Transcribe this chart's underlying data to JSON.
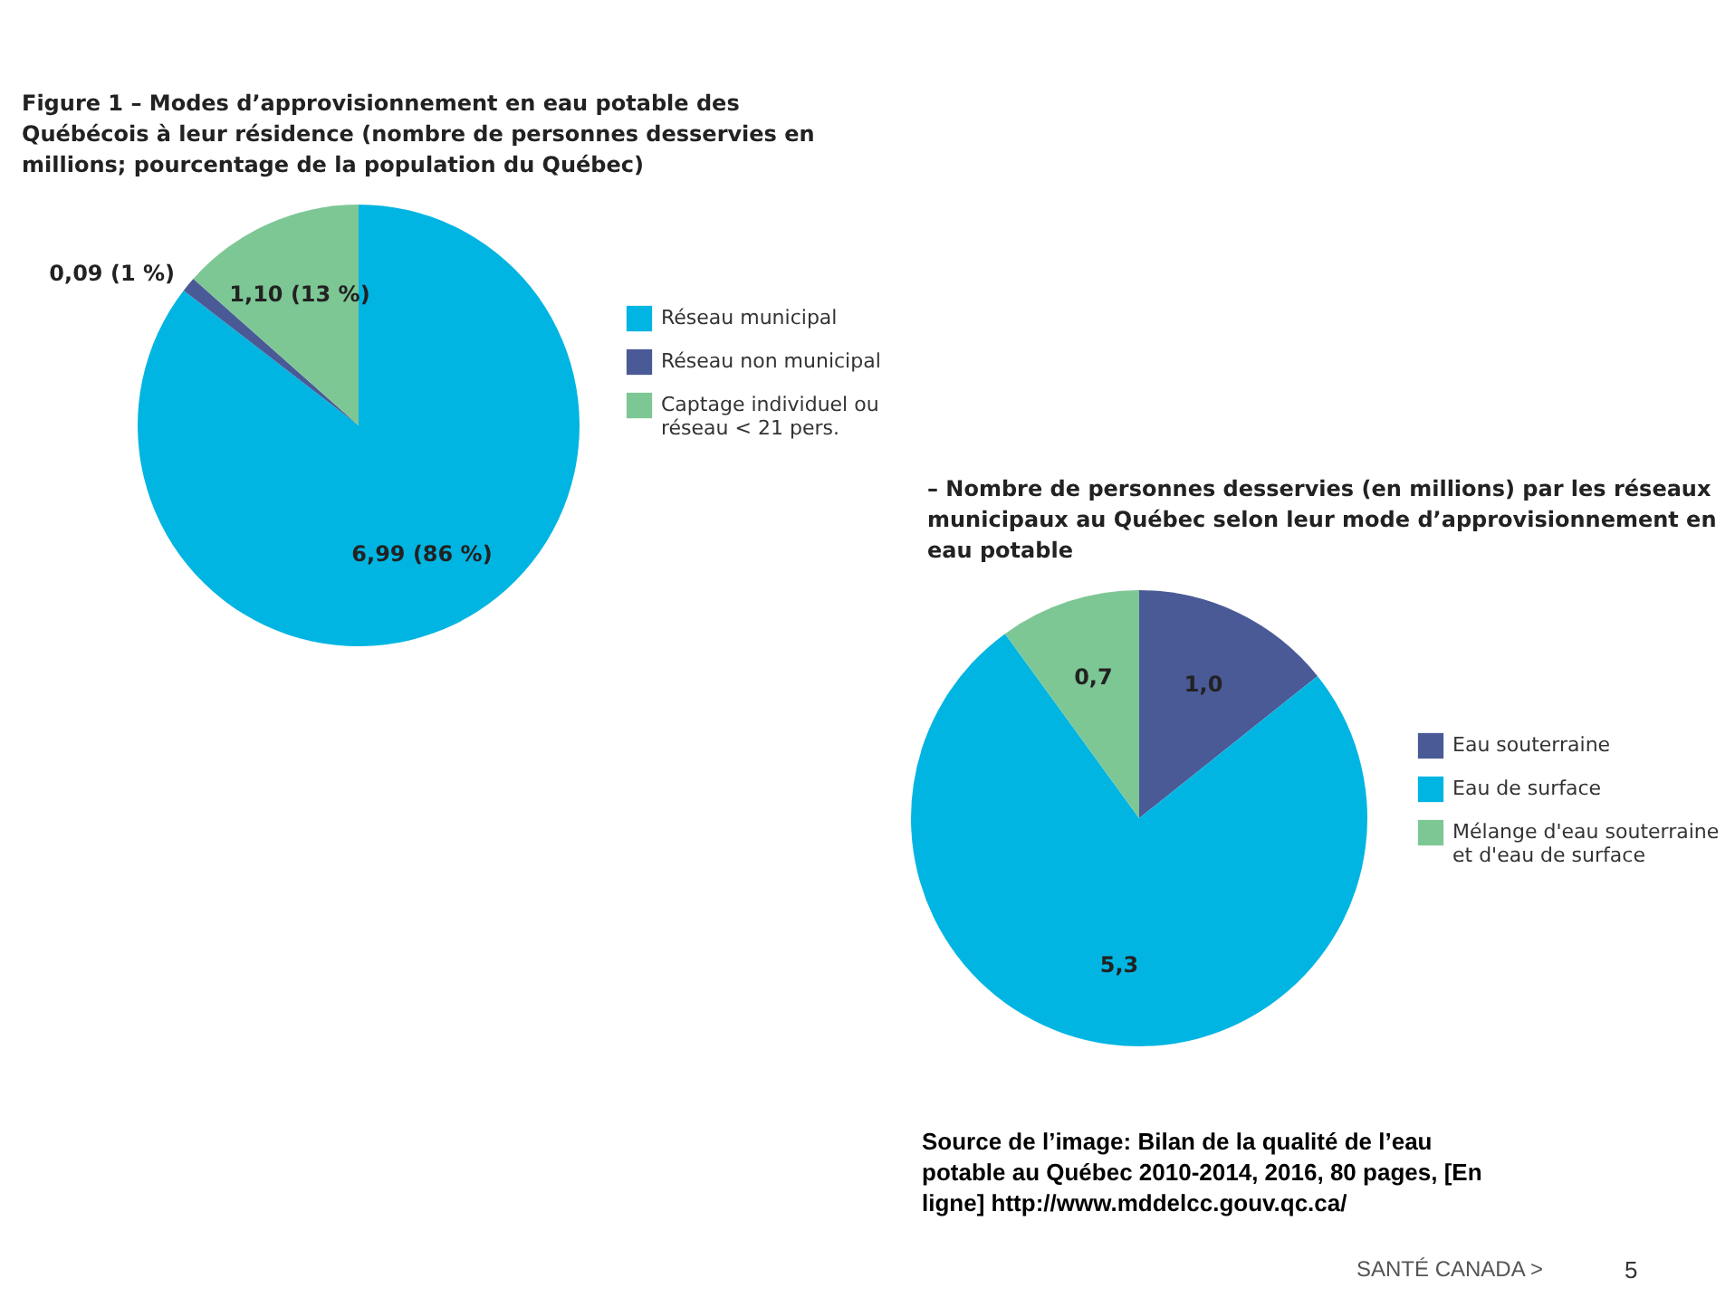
{
  "chart_data": [
    {
      "type": "pie",
      "title": "Figure 1 – Modes d’approvisionnement en eau potable des Québécois à leur résidence (nombre de personnes desservies en millions; pourcentage de la population du Québec)",
      "categories": [
        "Réseau municipal",
        "Réseau non municipal",
        "Captage individuel ou réseau < 21 pers."
      ],
      "values": [
        6.99,
        0.09,
        1.1
      ],
      "colors": [
        "#00b5e2",
        "#4a5a96",
        "#7dc795"
      ],
      "value_labels": [
        "6,99 (86 %)",
        "0,09 (1 %)",
        "1,10 (13 %)"
      ],
      "legend": "right"
    },
    {
      "type": "pie",
      "title": "– Nombre de personnes desservies (en millions) par les réseaux municipaux au Québec selon leur mode d’approvisionnement en eau potable",
      "categories": [
        "Eau souterraine",
        "Eau de surface",
        "Mélange d'eau souterraine et d'eau de surface"
      ],
      "values": [
        1.0,
        5.3,
        0.7
      ],
      "colors": [
        "#4a5a96",
        "#00b5e2",
        "#7dc795"
      ],
      "value_labels": [
        "1,0",
        "5,3",
        "0,7"
      ],
      "legend": "right",
      "annotations": [
        "Source de l’image: Bilan de la qualité de l’eau potable au Québec 2010-2014, 2016, 80 pages, [En ligne] http://www.mddelcc.gouv.qc.ca/",
        "SANTÉ CANADA >",
        "5"
      ]
    }
  ]
}
